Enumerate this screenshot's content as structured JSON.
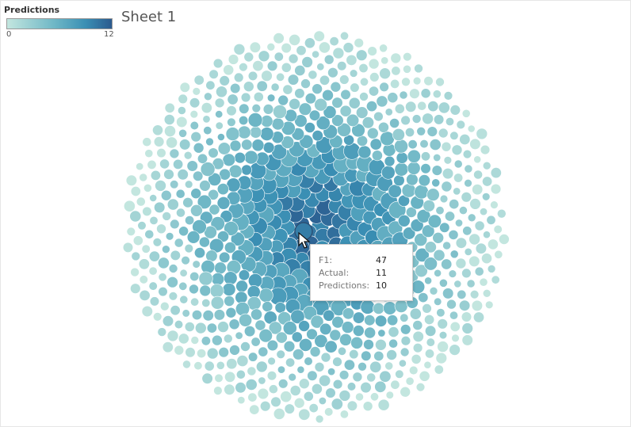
{
  "sheet_title": "Sheet 1",
  "legend": {
    "title": "Predictions",
    "min_label": "0",
    "max_label": "12",
    "color_low": "#c3e6df",
    "color_high": "#2b5a8e"
  },
  "tooltip": {
    "rows": [
      {
        "label": "F1:",
        "value": "47"
      },
      {
        "label": "Actual:",
        "value": "11"
      },
      {
        "label": "Predictions:",
        "value": "10"
      }
    ]
  },
  "chart_data": {
    "type": "packed-bubble",
    "color_field": "Predictions",
    "color_range": [
      0,
      12
    ],
    "size_field": "Actual",
    "n_bubbles": 820,
    "highlighted": {
      "F1": 47,
      "Actual": 11,
      "Predictions": 10
    }
  }
}
